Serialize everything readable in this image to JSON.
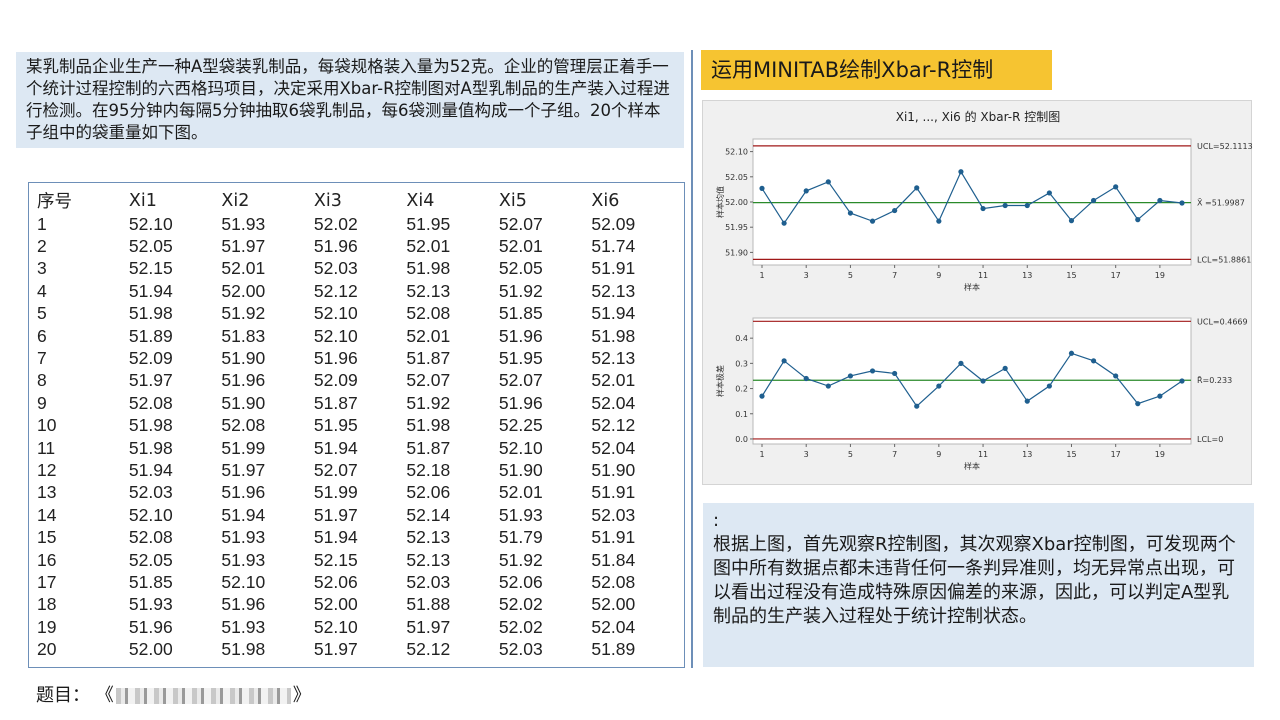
{
  "intro": "某乳制品企业生产一种A型袋装乳制品，每袋规格装入量为52克。企业的管理层正着手一个统计过程控制的六西格玛项目，决定采用Xbar-R控制图对A型乳制品的生产装入过程进行检测。在95分钟内每隔5分钟抽取6袋乳制品，每6袋测量值构成一个子组。20个样本子组中的袋重量如下图。",
  "table": {
    "headers": [
      "序号",
      "Xi1",
      "Xi2",
      "Xi3",
      "Xi4",
      "Xi5",
      "Xi6"
    ],
    "rows": [
      [
        "1",
        "52.10",
        "51.93",
        "52.02",
        "51.95",
        "52.07",
        "52.09"
      ],
      [
        "2",
        "52.05",
        "51.97",
        "51.96",
        "52.01",
        "52.01",
        "51.74"
      ],
      [
        "3",
        "52.15",
        "52.01",
        "52.03",
        "51.98",
        "52.05",
        "51.91"
      ],
      [
        "4",
        "51.94",
        "52.00",
        "52.12",
        "52.13",
        "51.92",
        "52.13"
      ],
      [
        "5",
        "51.98",
        "51.92",
        "52.10",
        "52.08",
        "51.85",
        "51.94"
      ],
      [
        "6",
        "51.89",
        "51.83",
        "52.10",
        "52.01",
        "51.96",
        "51.98"
      ],
      [
        "7",
        "52.09",
        "51.90",
        "51.96",
        "51.87",
        "51.95",
        "52.13"
      ],
      [
        "8",
        "51.97",
        "51.96",
        "52.09",
        "52.07",
        "52.07",
        "52.01"
      ],
      [
        "9",
        "52.08",
        "51.90",
        "51.87",
        "51.92",
        "51.96",
        "52.04"
      ],
      [
        "10",
        "51.98",
        "52.08",
        "51.95",
        "51.98",
        "52.25",
        "52.12"
      ],
      [
        "11",
        "51.98",
        "51.99",
        "51.94",
        "51.87",
        "52.10",
        "52.04"
      ],
      [
        "12",
        "51.94",
        "51.97",
        "52.07",
        "52.18",
        "51.90",
        "51.90"
      ],
      [
        "13",
        "52.03",
        "51.96",
        "51.99",
        "52.06",
        "52.01",
        "51.91"
      ],
      [
        "14",
        "52.10",
        "51.94",
        "51.97",
        "52.14",
        "51.93",
        "52.03"
      ],
      [
        "15",
        "52.08",
        "51.93",
        "51.94",
        "52.13",
        "51.79",
        "51.91"
      ],
      [
        "16",
        "52.05",
        "51.93",
        "52.15",
        "52.13",
        "51.92",
        "51.84"
      ],
      [
        "17",
        "51.85",
        "52.10",
        "52.06",
        "52.03",
        "52.06",
        "52.08"
      ],
      [
        "18",
        "51.93",
        "51.96",
        "52.00",
        "51.88",
        "52.02",
        "52.00"
      ],
      [
        "19",
        "51.96",
        "51.93",
        "52.10",
        "51.97",
        "52.02",
        "52.04"
      ],
      [
        "20",
        "52.00",
        "51.98",
        "51.97",
        "52.12",
        "52.03",
        "51.89"
      ]
    ]
  },
  "section_title": "运用MINITAB绘制Xbar-R控制",
  "conclusion": {
    "colon": ":",
    "text": "根据上图，首先观察R控制图，其次观察Xbar控制图，可发现两个图中所有数据点都未违背任何一条判异准则，均无异常点出现，可以看出过程没有造成特殊原因偏差的来源，因此，可以判定A型乳制品的生产装入过程处于统计控制状态。"
  },
  "footer": {
    "label": "题目：",
    "open_bracket": "《",
    "close_bracket": "》"
  },
  "colors": {
    "center_line": "#2a8a2a",
    "limit_line": "#a01818",
    "series": "#1f5f8f",
    "panel_bg": "#f0f0f0"
  },
  "chart_data": [
    {
      "type": "line",
      "title": "Xi1, ..., Xi6 的 Xbar-R 控制图",
      "ylabel": "样本均值",
      "xlabel": "样本",
      "x": [
        1,
        2,
        3,
        4,
        5,
        6,
        7,
        8,
        9,
        10,
        11,
        12,
        13,
        14,
        15,
        16,
        17,
        18,
        19,
        20
      ],
      "xticks": [
        1,
        3,
        5,
        7,
        9,
        11,
        13,
        15,
        17,
        19
      ],
      "yticks": [
        "51.90",
        "51.95",
        "52.00",
        "52.05",
        "52.10"
      ],
      "ylim": [
        51.875,
        52.125
      ],
      "series": [
        {
          "values": [
            52.027,
            51.958,
            52.022,
            52.04,
            51.978,
            51.962,
            51.983,
            52.028,
            51.962,
            52.06,
            51.987,
            51.993,
            51.993,
            52.018,
            51.963,
            52.003,
            52.03,
            51.965,
            52.003,
            51.998
          ]
        }
      ],
      "center": {
        "label": "X̄ =51.9987",
        "value": 51.9987
      },
      "ucl": {
        "label": "UCL=52.1113",
        "value": 52.1113
      },
      "lcl": {
        "label": "LCL=51.8861",
        "value": 51.8861
      }
    },
    {
      "type": "line",
      "ylabel": "样本极差",
      "xlabel": "样本",
      "x": [
        1,
        2,
        3,
        4,
        5,
        6,
        7,
        8,
        9,
        10,
        11,
        12,
        13,
        14,
        15,
        16,
        17,
        18,
        19,
        20
      ],
      "xticks": [
        1,
        3,
        5,
        7,
        9,
        11,
        13,
        15,
        17,
        19
      ],
      "yticks": [
        "0.0",
        "0.1",
        "0.2",
        "0.3",
        "0.4"
      ],
      "ylim": [
        -0.02,
        0.48
      ],
      "series": [
        {
          "values": [
            0.17,
            0.31,
            0.24,
            0.21,
            0.25,
            0.27,
            0.26,
            0.13,
            0.21,
            0.3,
            0.23,
            0.28,
            0.15,
            0.21,
            0.34,
            0.31,
            0.25,
            0.14,
            0.17,
            0.23
          ]
        }
      ],
      "center": {
        "label": "R̄=0.233",
        "value": 0.233
      },
      "ucl": {
        "label": "UCL=0.4669",
        "value": 0.4669
      },
      "lcl": {
        "label": "LCL=0",
        "value": 0
      }
    }
  ]
}
